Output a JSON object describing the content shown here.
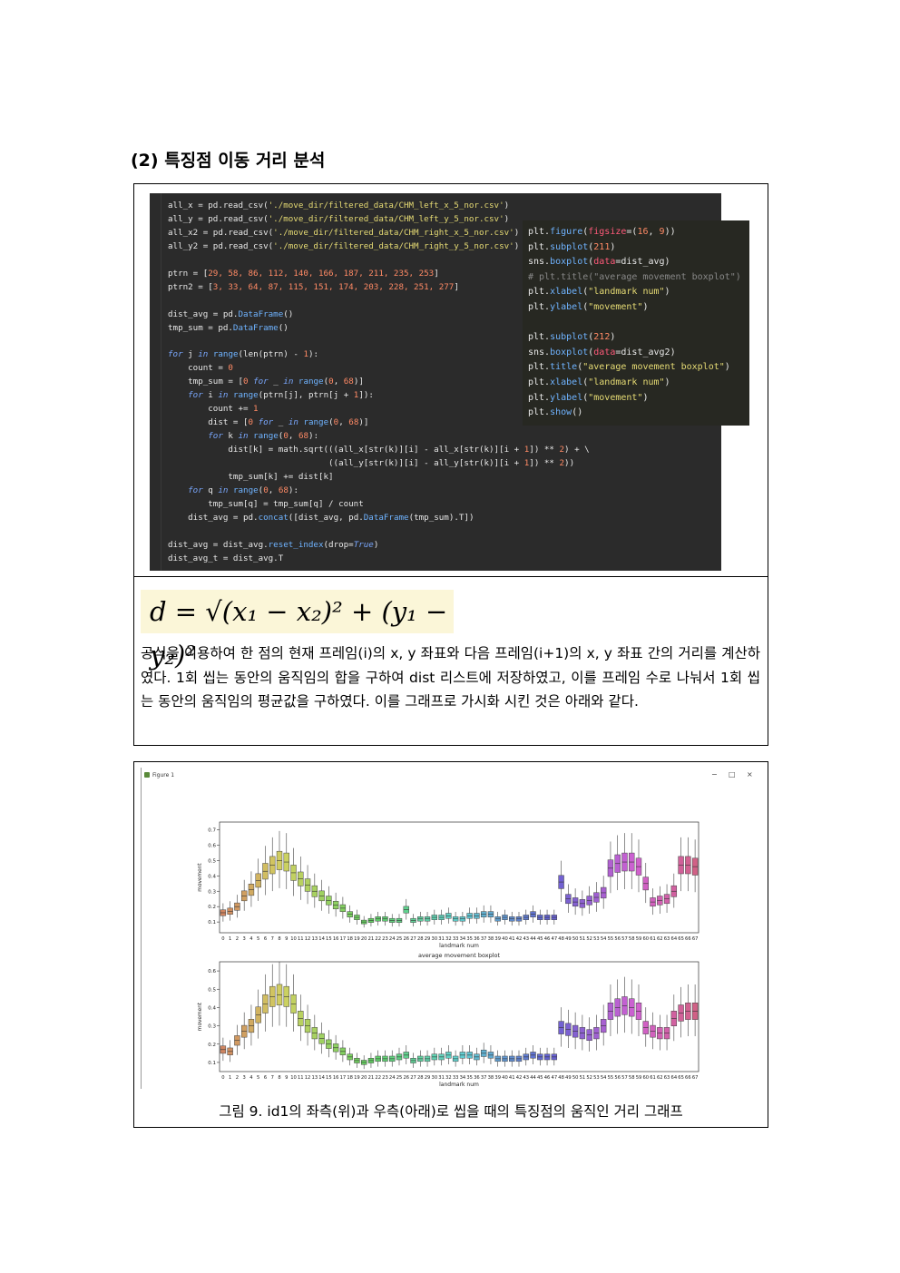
{
  "heading": "(2) 특징점 이동 거리 분석",
  "code_left": [
    [
      [
        "",
        "all_x = pd.read_csv("
      ],
      [
        "s",
        "'./move_dir/filtered_data/CHM_left_x_5_nor.csv'"
      ],
      [
        "",
        ")"
      ]
    ],
    [
      [
        "",
        "all_y = pd.read_csv("
      ],
      [
        "s",
        "'./move_dir/filtered_data/CHM_left_y_5_nor.csv'"
      ],
      [
        "",
        ")"
      ]
    ],
    [
      [
        "",
        "all_x2 = pd.read_csv("
      ],
      [
        "s",
        "'./move_dir/filtered_data/CHM_right_x_5_nor.csv'"
      ],
      [
        "",
        ")"
      ]
    ],
    [
      [
        "",
        "all_y2 = pd.read_csv("
      ],
      [
        "s",
        "'./move_dir/filtered_data/CHM_right_y_5_nor.csv'"
      ],
      [
        "",
        ")"
      ]
    ],
    [
      [
        "",
        ""
      ]
    ],
    [
      [
        "",
        "ptrn = ["
      ],
      [
        "n",
        "29, 58, 86, 112, 140, 166, 187, 211, 235, 253"
      ],
      [
        "",
        "]"
      ]
    ],
    [
      [
        "",
        "ptrn2 = ["
      ],
      [
        "n",
        "3, 33, 64, 87, 115, 151, 174, 203, 228, 251, 277"
      ],
      [
        "",
        "]"
      ]
    ],
    [
      [
        "",
        ""
      ]
    ],
    [
      [
        "",
        "dist_avg = pd."
      ],
      [
        "f",
        "DataFrame"
      ],
      [
        "",
        "()"
      ]
    ],
    [
      [
        "",
        "tmp_sum = pd."
      ],
      [
        "f",
        "DataFrame"
      ],
      [
        "",
        "()"
      ]
    ],
    [
      [
        "",
        ""
      ]
    ],
    [
      [
        "k",
        "for"
      ],
      [
        "",
        " j "
      ],
      [
        "k",
        "in"
      ],
      [
        "",
        " "
      ],
      [
        "f",
        "range"
      ],
      [
        "",
        "(len(ptrn) - "
      ],
      [
        "n",
        "1"
      ],
      [
        "",
        "):"
      ]
    ],
    [
      [
        "",
        "    count = "
      ],
      [
        "n",
        "0"
      ]
    ],
    [
      [
        "",
        "    tmp_sum = ["
      ],
      [
        "n",
        "0"
      ],
      [
        "",
        " "
      ],
      [
        "k",
        "for"
      ],
      [
        "",
        " _ "
      ],
      [
        "k",
        "in"
      ],
      [
        "",
        " "
      ],
      [
        "f",
        "range"
      ],
      [
        "",
        "("
      ],
      [
        "n",
        "0"
      ],
      [
        "",
        ", "
      ],
      [
        "n",
        "68"
      ],
      [
        "",
        ")]"
      ]
    ],
    [
      [
        "",
        "    "
      ],
      [
        "k",
        "for"
      ],
      [
        "",
        " i "
      ],
      [
        "k",
        "in"
      ],
      [
        "",
        " "
      ],
      [
        "f",
        "range"
      ],
      [
        "",
        "(ptrn[j], ptrn[j + "
      ],
      [
        "n",
        "1"
      ],
      [
        "",
        "]):"
      ]
    ],
    [
      [
        "",
        "        count += "
      ],
      [
        "n",
        "1"
      ]
    ],
    [
      [
        "",
        "        dist = ["
      ],
      [
        "n",
        "0"
      ],
      [
        "",
        " "
      ],
      [
        "k",
        "for"
      ],
      [
        "",
        " _ "
      ],
      [
        "k",
        "in"
      ],
      [
        "",
        " "
      ],
      [
        "f",
        "range"
      ],
      [
        "",
        "("
      ],
      [
        "n",
        "0"
      ],
      [
        "",
        ", "
      ],
      [
        "n",
        "68"
      ],
      [
        "",
        ")]"
      ]
    ],
    [
      [
        "",
        "        "
      ],
      [
        "k",
        "for"
      ],
      [
        "",
        " k "
      ],
      [
        "k",
        "in"
      ],
      [
        "",
        " "
      ],
      [
        "f",
        "range"
      ],
      [
        "",
        "("
      ],
      [
        "n",
        "0"
      ],
      [
        "",
        ", "
      ],
      [
        "n",
        "68"
      ],
      [
        "",
        "):"
      ]
    ],
    [
      [
        "",
        "            dist[k] = math.sqrt(((all_x[str(k)][i] - all_x[str(k)][i + "
      ],
      [
        "n",
        "1"
      ],
      [
        "",
        "]) ** "
      ],
      [
        "n",
        "2"
      ],
      [
        "",
        ") + \\"
      ]
    ],
    [
      [
        "",
        "                                ((all_y[str(k)][i] - all_y[str(k)][i + "
      ],
      [
        "n",
        "1"
      ],
      [
        "",
        "]) ** "
      ],
      [
        "n",
        "2"
      ],
      [
        "",
        "))"
      ]
    ],
    [
      [
        "",
        "            tmp_sum[k] += dist[k]"
      ]
    ],
    [
      [
        "",
        "    "
      ],
      [
        "k",
        "for"
      ],
      [
        "",
        " q "
      ],
      [
        "k",
        "in"
      ],
      [
        "",
        " "
      ],
      [
        "f",
        "range"
      ],
      [
        "",
        "("
      ],
      [
        "n",
        "0"
      ],
      [
        "",
        ", "
      ],
      [
        "n",
        "68"
      ],
      [
        "",
        "):"
      ]
    ],
    [
      [
        "",
        "        tmp_sum[q] = tmp_sum[q] / count"
      ]
    ],
    [
      [
        "",
        "    dist_avg = pd."
      ],
      [
        "f",
        "concat"
      ],
      [
        "",
        "([dist_avg, pd."
      ],
      [
        "f",
        "DataFrame"
      ],
      [
        "",
        "(tmp_sum).T])"
      ]
    ],
    [
      [
        "",
        ""
      ]
    ],
    [
      [
        "",
        "dist_avg = dist_avg."
      ],
      [
        "f",
        "reset_index"
      ],
      [
        "",
        "(drop="
      ],
      [
        "k",
        "True"
      ],
      [
        "",
        ")"
      ]
    ],
    [
      [
        "",
        "dist_avg_t = dist_avg.T"
      ]
    ]
  ],
  "code_right": [
    [
      [
        "",
        "plt."
      ],
      [
        "f",
        "figure"
      ],
      [
        "",
        "("
      ],
      [
        "o",
        "figsize"
      ],
      [
        "",
        "=("
      ],
      [
        "n",
        "16"
      ],
      [
        "",
        ", "
      ],
      [
        "n",
        "9"
      ],
      [
        "",
        "))"
      ]
    ],
    [
      [
        "",
        "plt."
      ],
      [
        "f",
        "subplot"
      ],
      [
        "",
        "("
      ],
      [
        "n",
        "211"
      ],
      [
        "",
        ")"
      ]
    ],
    [
      [
        "",
        "sns."
      ],
      [
        "f",
        "boxplot"
      ],
      [
        "",
        "("
      ],
      [
        "o",
        "data"
      ],
      [
        "",
        "=dist_avg)"
      ]
    ],
    [
      [
        "c",
        "# plt.title(\"average movement boxplot\")"
      ]
    ],
    [
      [
        "",
        "plt."
      ],
      [
        "f",
        "xlabel"
      ],
      [
        "",
        "("
      ],
      [
        "s",
        "\"landmark num\""
      ],
      [
        "",
        ")"
      ]
    ],
    [
      [
        "",
        "plt."
      ],
      [
        "f",
        "ylabel"
      ],
      [
        "",
        "("
      ],
      [
        "s",
        "\"movement\""
      ],
      [
        "",
        ")"
      ]
    ],
    [
      [
        "",
        ""
      ]
    ],
    [
      [
        "",
        "plt."
      ],
      [
        "f",
        "subplot"
      ],
      [
        "",
        "("
      ],
      [
        "n",
        "212"
      ],
      [
        "",
        ")"
      ]
    ],
    [
      [
        "",
        "sns."
      ],
      [
        "f",
        "boxplot"
      ],
      [
        "",
        "("
      ],
      [
        "o",
        "data"
      ],
      [
        "",
        "=dist_avg2)"
      ]
    ],
    [
      [
        "",
        "plt."
      ],
      [
        "f",
        "title"
      ],
      [
        "",
        "("
      ],
      [
        "s",
        "\"average movement boxplot\""
      ],
      [
        "",
        ")"
      ]
    ],
    [
      [
        "",
        "plt."
      ],
      [
        "f",
        "xlabel"
      ],
      [
        "",
        "("
      ],
      [
        "s",
        "\"landmark num\""
      ],
      [
        "",
        ")"
      ]
    ],
    [
      [
        "",
        "plt."
      ],
      [
        "f",
        "ylabel"
      ],
      [
        "",
        "("
      ],
      [
        "s",
        "\"movement\""
      ],
      [
        "",
        ")"
      ]
    ],
    [
      [
        "",
        "plt."
      ],
      [
        "f",
        "show"
      ],
      [
        "",
        "()"
      ]
    ]
  ],
  "formula": "d = √(x₁ − x₂)² + (y₁ − y₂)²",
  "paragraph": "공식을 이용하여 한 점의 현재 프레임(i)의 x, y 좌표와 다음 프레임(i+1)의 x, y 좌표 간의 거리를 계산하였다. 1회 씹는 동안의 움직임의 합을 구하여 dist 리스트에 저장하였고, 이를 프레임 수로 나눠서 1회 씹는 동안의 움직임의 평균값을 구하였다. 이를 그래프로 가시화 시킨 것은 아래와 같다.",
  "figure_window": {
    "title": "Figure 1",
    "minimize": "−",
    "maximize": "□",
    "close": "×"
  },
  "caption": "그림 9. id1의 좌측(위)과 우측(아래)로 씹을 때의 특징점의 움직인 거리 그래프",
  "chart_data": [
    {
      "type": "box",
      "title": "",
      "xlabel": "landmark num",
      "ylabel": "movement",
      "ylim": [
        0.03,
        0.75
      ],
      "yticks": [
        0.1,
        0.2,
        0.3,
        0.4,
        0.5,
        0.6,
        0.7
      ],
      "categories": [
        "0",
        "1",
        "2",
        "3",
        "4",
        "5",
        "6",
        "7",
        "8",
        "9",
        "10",
        "11",
        "12",
        "13",
        "14",
        "15",
        "16",
        "17",
        "18",
        "19",
        "20",
        "21",
        "22",
        "23",
        "24",
        "25",
        "26",
        "27",
        "28",
        "29",
        "30",
        "31",
        "32",
        "33",
        "34",
        "35",
        "36",
        "37",
        "38",
        "39",
        "40",
        "41",
        "42",
        "43",
        "44",
        "45",
        "46",
        "47",
        "48",
        "49",
        "50",
        "51",
        "52",
        "53",
        "54",
        "55",
        "56",
        "57",
        "58",
        "59",
        "60",
        "61",
        "62",
        "63",
        "64",
        "65",
        "66",
        "67"
      ],
      "medians": [
        0.16,
        0.17,
        0.2,
        0.27,
        0.31,
        0.37,
        0.43,
        0.47,
        0.5,
        0.49,
        0.42,
        0.38,
        0.34,
        0.3,
        0.27,
        0.24,
        0.21,
        0.19,
        0.15,
        0.13,
        0.1,
        0.11,
        0.12,
        0.12,
        0.11,
        0.11,
        0.18,
        0.11,
        0.12,
        0.12,
        0.13,
        0.13,
        0.14,
        0.12,
        0.12,
        0.14,
        0.14,
        0.15,
        0.15,
        0.12,
        0.13,
        0.12,
        0.12,
        0.13,
        0.15,
        0.13,
        0.13,
        0.13,
        0.36,
        0.25,
        0.23,
        0.22,
        0.24,
        0.26,
        0.29,
        0.45,
        0.48,
        0.49,
        0.49,
        0.46,
        0.35,
        0.23,
        0.24,
        0.25,
        0.3,
        0.47,
        0.47,
        0.46
      ],
      "colors": [
        "#d97a6e",
        "#d57c62",
        "#cf8055",
        "#c98449",
        "#c2883d",
        "#ba8c33",
        "#b0902c",
        "#a69428",
        "#9a9829",
        "#8e9b2f",
        "#7f9e37",
        "#6fa03f",
        "#5ea247",
        "#4aa450",
        "#3aa55c",
        "#34a56a",
        "#33a576",
        "#33a582",
        "#34a48d",
        "#35a397",
        "#36a2a2",
        "#37a1ab",
        "#39a0b5",
        "#3b9ebf",
        "#3d9cc9",
        "#419ad3",
        "#4c97db",
        "#5a93e2",
        "#6990e6",
        "#798ce8",
        "#8889ea",
        "#9686ea",
        "#a482ea",
        "#b27ee8",
        "#bf7ae5",
        "#cb77e0",
        "#d674da",
        "#df73d2",
        "#e572c8",
        "#e973bd",
        "#ec74b1",
        "#ed77a4",
        "#ec7a97",
        "#ea7d8a",
        "#e67f7e",
        "#e08272"
      ],
      "grid": false
    },
    {
      "type": "box",
      "title": "average movement boxplot",
      "xlabel": "landmark num",
      "ylabel": "movement",
      "ylim": [
        0.05,
        0.65
      ],
      "yticks": [
        0.1,
        0.2,
        0.3,
        0.4,
        0.5,
        0.6
      ],
      "categories": [
        "0",
        "1",
        "2",
        "3",
        "4",
        "5",
        "6",
        "7",
        "8",
        "9",
        "10",
        "11",
        "12",
        "13",
        "14",
        "15",
        "16",
        "17",
        "18",
        "19",
        "20",
        "21",
        "22",
        "23",
        "24",
        "25",
        "26",
        "27",
        "28",
        "29",
        "30",
        "31",
        "32",
        "33",
        "34",
        "35",
        "36",
        "37",
        "38",
        "39",
        "40",
        "41",
        "42",
        "43",
        "44",
        "45",
        "46",
        "47",
        "48",
        "49",
        "50",
        "51",
        "52",
        "53",
        "54",
        "55",
        "56",
        "57",
        "58",
        "59",
        "60",
        "61",
        "62",
        "63",
        "64",
        "65",
        "66",
        "67"
      ],
      "medians": [
        0.17,
        0.16,
        0.22,
        0.27,
        0.3,
        0.36,
        0.42,
        0.46,
        0.47,
        0.46,
        0.42,
        0.34,
        0.3,
        0.26,
        0.23,
        0.2,
        0.18,
        0.16,
        0.13,
        0.11,
        0.1,
        0.11,
        0.12,
        0.12,
        0.12,
        0.13,
        0.14,
        0.11,
        0.12,
        0.12,
        0.13,
        0.13,
        0.14,
        0.12,
        0.14,
        0.14,
        0.13,
        0.15,
        0.14,
        0.12,
        0.12,
        0.12,
        0.12,
        0.13,
        0.14,
        0.13,
        0.13,
        0.13,
        0.29,
        0.28,
        0.27,
        0.26,
        0.25,
        0.26,
        0.3,
        0.38,
        0.4,
        0.41,
        0.4,
        0.38,
        0.29,
        0.27,
        0.26,
        0.26,
        0.34,
        0.37,
        0.38,
        0.38
      ],
      "grid": false
    }
  ]
}
